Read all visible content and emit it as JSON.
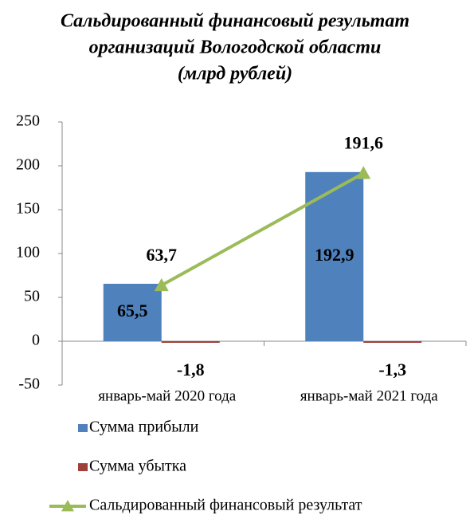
{
  "chart_data": {
    "type": "bar",
    "title": [
      "Сальдированный финансовый результат",
      "организаций Вологодской области",
      "(млрд рублей)"
    ],
    "categories": [
      "январь-май 2020 года",
      "январь-май 2021 года"
    ],
    "series": [
      {
        "name": "Сумма прибыли",
        "type": "bar",
        "color": "#4f81bd",
        "values": [
          65.5,
          192.9
        ],
        "value_labels": [
          "65,5",
          "192,9"
        ]
      },
      {
        "name": "Сумма убытка",
        "type": "bar",
        "color": "#a0403c",
        "values": [
          -1.8,
          -1.3
        ],
        "value_labels": [
          "-1,8",
          "-1,3"
        ]
      },
      {
        "name": "Сальдированный финансовый результат",
        "type": "line",
        "color": "#9bbb59",
        "values": [
          63.7,
          191.6
        ],
        "value_labels": [
          "63,7",
          "191,6"
        ]
      }
    ],
    "ylim": [
      -50,
      250
    ],
    "yticks": [
      -50,
      0,
      50,
      100,
      150,
      200,
      250
    ],
    "grid": false,
    "legend": "bottom"
  }
}
